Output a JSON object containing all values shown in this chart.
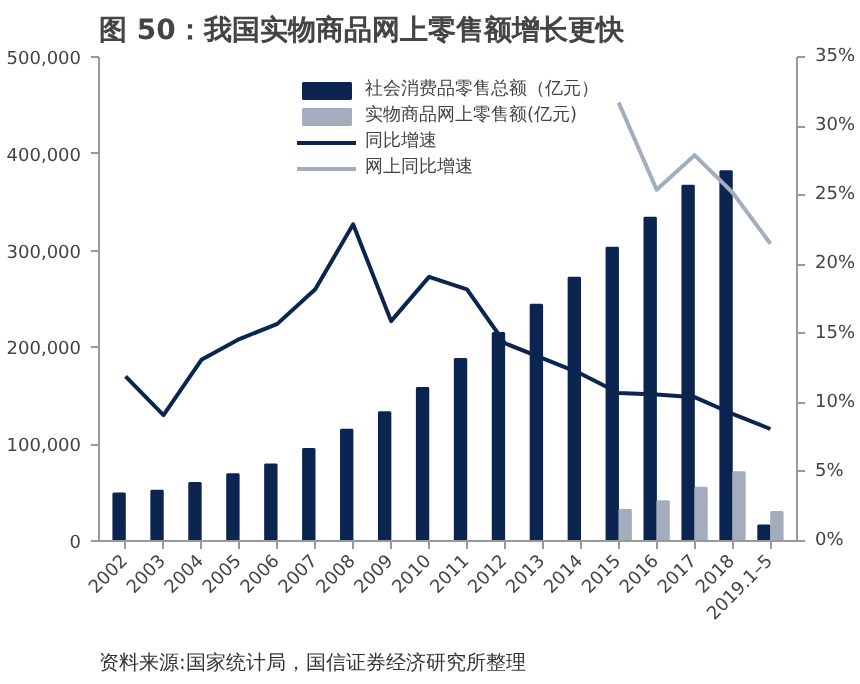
{
  "chart_data": {
    "type": "bar",
    "title": "图 50：我国实物商品网上零售额增长更快",
    "categories": [
      "2002",
      "2003",
      "2004",
      "2005",
      "2006",
      "2007",
      "2008",
      "2009",
      "2010",
      "2011",
      "2012",
      "2013",
      "2014",
      "2015",
      "2016",
      "2017",
      "2018",
      "2019.1–5"
    ],
    "series": [
      {
        "name": "社会消费品零售总额（亿元）",
        "color": "#0b2550",
        "values": [
          49000,
          52000,
          60000,
          69000,
          79000,
          95000,
          115000,
          133000,
          158000,
          188000,
          215000,
          244000,
          272000,
          303000,
          334000,
          367000,
          382000,
          16000
        ]
      },
      {
        "name": "实物商品网上零售额(亿元)",
        "color": "#a3adbd",
        "values": [
          null,
          null,
          null,
          null,
          null,
          null,
          null,
          null,
          null,
          null,
          null,
          null,
          null,
          32000,
          41000,
          55000,
          71000,
          30000
        ]
      },
      {
        "name": "同比增速",
        "type": "line",
        "axis": "y2",
        "color": "#0b2550",
        "values": [
          11.9,
          9.1,
          13.1,
          14.6,
          15.7,
          18.2,
          22.9,
          15.9,
          19.1,
          18.2,
          14.3,
          13.2,
          12.1,
          10.7,
          10.6,
          10.4,
          9.2,
          8.1
        ]
      },
      {
        "name": "网上同比增速",
        "type": "line",
        "axis": "y2",
        "color": "#a3adbd",
        "values": [
          null,
          null,
          null,
          null,
          null,
          null,
          null,
          null,
          null,
          null,
          null,
          null,
          null,
          31.7,
          25.4,
          27.9,
          25.2,
          21.5
        ]
      }
    ],
    "ylim": [
      0,
      500000
    ],
    "yticks": [
      0,
      {
        "value": 100000,
        "label": "100,000"
      },
      {
        "value": 200000,
        "label": "200,000"
      },
      {
        "value": 300000,
        "label": "300,000"
      },
      {
        "value": 400000,
        "label": "400,000"
      },
      {
        "value": 500000,
        "label": "500,000"
      }
    ],
    "y2lim": [
      0,
      35
    ],
    "y2ticks": [
      {
        "value": 0,
        "label": "0%"
      },
      {
        "value": 5,
        "label": "5%"
      },
      {
        "value": 10,
        "label": "10%"
      },
      {
        "value": 15,
        "label": "15%"
      },
      {
        "value": 20,
        "label": "20%"
      },
      {
        "value": 25,
        "label": "25%"
      },
      {
        "value": 30,
        "label": "30%"
      },
      {
        "value": 35,
        "label": "35%"
      }
    ],
    "grid": false,
    "legend": "top",
    "annotations": [
      "资料来源:国家统计局，国信证券经济研究所整理"
    ]
  }
}
